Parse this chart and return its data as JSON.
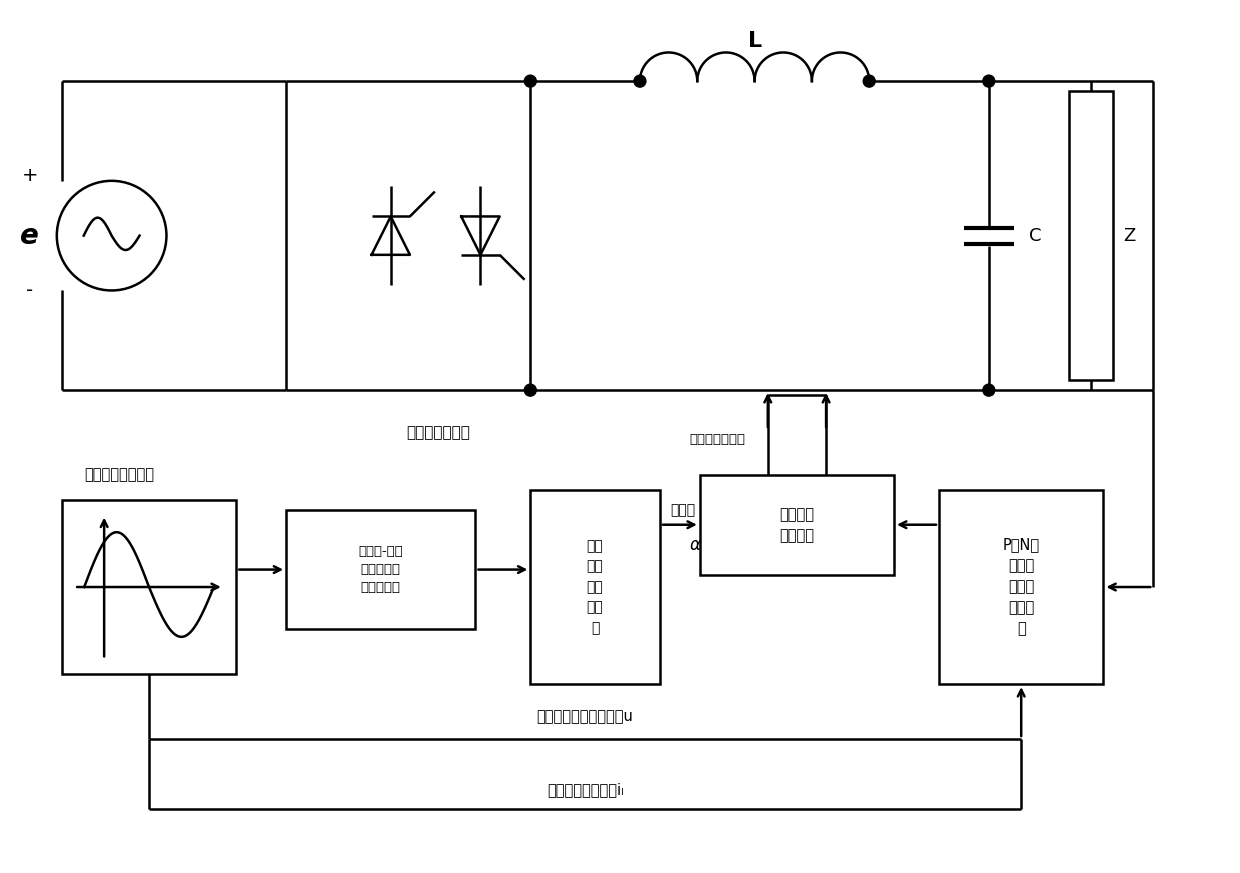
{
  "bg_color": "#ffffff",
  "line_color": "#000000",
  "fig_width": 12.4,
  "fig_height": 8.73,
  "labels": {
    "e": "e",
    "plus": "+",
    "minus": "-",
    "L": "L",
    "C": "C",
    "Z": "Z",
    "bridge_label": "反向并联整流桥",
    "drive_signal": "整流桥驱动信号",
    "waveform_label": "波形数据采样环节",
    "table_gen": "触发角-平均\n输出电压表\n格生成环节",
    "update_alg": "触发\n角更\n新算\n法环\n节",
    "firing_angle": "触发角",
    "alpha": "α",
    "trigger_pulse": "触发脉冲\n控制环节",
    "pn_switch": "P或N组\n整流桥\n的切换\n控制环\n节",
    "input_voltage": "输入电源模块电压数据u",
    "load_current": "负载模块电流数据iₗ"
  }
}
